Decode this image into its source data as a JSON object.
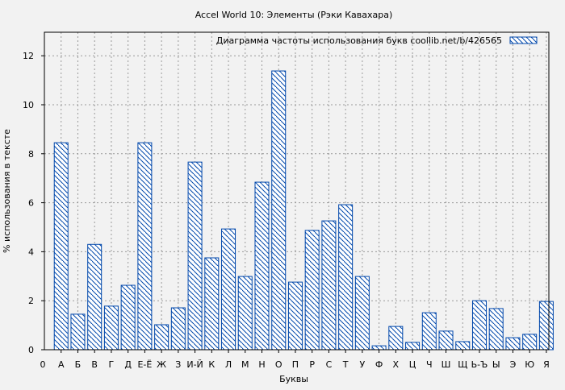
{
  "chart_data": {
    "type": "bar",
    "title": "Accel World 10: Элементы (Рэки Кавахара)",
    "xlabel": "Буквы",
    "ylabel": "% использования в тексте",
    "legend": {
      "label": "Диаграмма частоты использования букв  coollib.net/b/426565",
      "placement": "top-right"
    },
    "x_origin_label": "0",
    "categories": [
      "А",
      "Б",
      "В",
      "Г",
      "Д",
      "Е-Ё",
      "Ж",
      "З",
      "И-Й",
      "К",
      "Л",
      "М",
      "Н",
      "О",
      "П",
      "Р",
      "С",
      "Т",
      "У",
      "Ф",
      "Х",
      "Ц",
      "Ч",
      "Ш",
      "Щ",
      "Ь-Ъ",
      "Ы",
      "Э",
      "Ю",
      "Я"
    ],
    "values": [
      8.45,
      1.45,
      4.3,
      1.78,
      2.63,
      8.45,
      1.02,
      1.71,
      7.66,
      3.75,
      4.93,
      2.99,
      6.84,
      11.38,
      2.76,
      4.87,
      5.26,
      5.92,
      2.99,
      0.16,
      0.95,
      0.3,
      1.51,
      0.76,
      0.33,
      2.0,
      1.68,
      0.49,
      0.63,
      1.97
    ],
    "ylim": [
      0,
      13
    ],
    "yticks": [
      0,
      2,
      4,
      6,
      8,
      10,
      12
    ],
    "grid": true,
    "colors": {
      "bar_stroke": "#0047ab",
      "background": "#f2f2f2"
    }
  }
}
